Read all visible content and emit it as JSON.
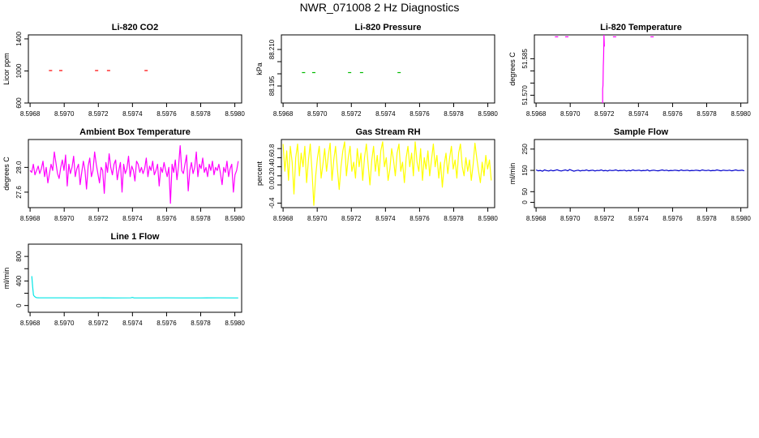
{
  "page": {
    "title": "NWR_071008  2 Hz Diagnostics"
  },
  "chart_data": [
    {
      "id": "co2",
      "type": "scatter",
      "title": "Li-820 CO2",
      "ylabel": "Licor ppm",
      "xlim": [
        8.59679,
        8.59804
      ],
      "ylim": [
        600,
        1450
      ],
      "xticks": [
        8.5968,
        8.597,
        8.5972,
        8.5974,
        8.5976,
        8.5978,
        8.598
      ],
      "xtick_labels": [
        "8.5968",
        "8.5970",
        "8.5972",
        "8.5974",
        "8.5976",
        "8.5978",
        "8.5980"
      ],
      "yticks": [
        600,
        1000,
        1400
      ],
      "ytick_labels": [
        "600",
        "1000",
        "1400"
      ],
      "color": "#ff0000",
      "series": [
        {
          "name": "CO2",
          "style": "dash",
          "x": [
            8.59692,
            8.59698,
            8.59719,
            8.59726,
            8.59748
          ],
          "y": [
            1005,
            1005,
            1005,
            1005,
            1005
          ]
        }
      ]
    },
    {
      "id": "pressure",
      "type": "scatter",
      "title": "Li-820 Pressure",
      "ylabel": "kPa",
      "xlim": [
        8.59679,
        8.59804
      ],
      "ylim": [
        88.188,
        88.216
      ],
      "xticks": [
        8.5968,
        8.597,
        8.5972,
        8.5974,
        8.5976,
        8.5978,
        8.598
      ],
      "xtick_labels": [
        "8.5968",
        "8.5970",
        "8.5972",
        "8.5974",
        "8.5976",
        "8.5978",
        "8.5980"
      ],
      "yticks": [
        88.195,
        88.2,
        88.205,
        88.21
      ],
      "ytick_labels": [
        "88.195",
        "",
        "",
        "88.210"
      ],
      "color": "#00bb00",
      "series": [
        {
          "name": "Pressure",
          "style": "dash",
          "x": [
            8.59692,
            8.59698,
            8.59719,
            8.59726,
            8.59748
          ],
          "y": [
            88.2005,
            88.2005,
            88.2005,
            88.2005,
            88.2005
          ]
        }
      ]
    },
    {
      "id": "temperature",
      "type": "line",
      "title": "Li-820 Temperature",
      "ylabel": "degrees C",
      "xlim": [
        8.59679,
        8.59804
      ],
      "ylim": [
        51.5668,
        51.5948
      ],
      "xticks": [
        8.5968,
        8.597,
        8.5972,
        8.5974,
        8.5976,
        8.5978,
        8.598
      ],
      "xtick_labels": [
        "8.5968",
        "8.5970",
        "8.5972",
        "8.5974",
        "8.5976",
        "8.5978",
        "8.5980"
      ],
      "yticks": [
        51.57,
        51.575,
        51.58,
        51.585
      ],
      "ytick_labels": [
        "51.570",
        "",
        "",
        "51.585"
      ],
      "color": "#ff00ff",
      "series": [
        {
          "name": "dashes",
          "style": "dash",
          "x": [
            8.59692,
            8.59698,
            8.59726,
            8.59748
          ],
          "y": [
            51.594,
            51.594,
            51.594,
            51.594
          ]
        },
        {
          "name": "spike",
          "style": "line",
          "x": [
            8.59719,
            8.59719,
            8.597192,
            8.597194,
            8.597196,
            8.597198,
            8.5972
          ],
          "y": [
            51.5668,
            51.5725,
            51.574,
            51.582,
            51.586,
            51.5948,
            51.59
          ]
        }
      ]
    },
    {
      "id": "ambient",
      "type": "line",
      "title": "Ambient Box Temperature",
      "ylabel": "degrees C",
      "xlim": [
        8.59679,
        8.59804
      ],
      "ylim": [
        27.35,
        28.45
      ],
      "xticks": [
        8.5968,
        8.597,
        8.5972,
        8.5974,
        8.5976,
        8.5978,
        8.598
      ],
      "xtick_labels": [
        "8.5968",
        "8.5970",
        "8.5972",
        "8.5974",
        "8.5976",
        "8.5978",
        "8.5980"
      ],
      "yticks": [
        27.6,
        28.0
      ],
      "ytick_labels": [
        "27.6",
        "28.0"
      ],
      "color": "#ff00ff",
      "series": [
        {
          "name": "Ambient",
          "style": "line",
          "x0": 8.5968,
          "x1": 8.59802,
          "y": [
            27.95,
            27.92,
            28.05,
            27.88,
            27.95,
            28.02,
            27.9,
            27.98,
            28.1,
            27.85,
            28.0,
            27.75,
            27.9,
            28.05,
            27.95,
            28.25,
            28.08,
            27.9,
            27.82,
            28.0,
            28.12,
            27.95,
            28.2,
            27.7,
            28.05,
            27.9,
            28.0,
            28.18,
            27.85,
            27.98,
            28.05,
            27.72,
            27.92,
            28.1,
            27.95,
            27.65,
            28.02,
            28.15,
            27.85,
            27.95,
            28.25,
            28.05,
            27.9,
            27.75,
            28.0,
            27.95,
            27.58,
            28.08,
            27.92,
            28.22,
            28.0,
            27.88,
            28.05,
            28.12,
            27.8,
            27.95,
            28.08,
            27.6,
            28.05,
            27.9,
            27.98,
            28.18,
            27.85,
            28.02,
            27.95,
            27.78,
            28.1,
            28.05,
            27.92,
            28.0,
            27.9,
            27.98,
            28.15,
            27.85,
            28.02,
            27.95,
            28.1,
            27.88,
            27.95,
            28.05,
            27.7,
            28.0,
            27.92,
            28.08,
            27.96,
            27.85,
            28.0,
            27.42,
            28.05,
            27.92,
            28.12,
            27.8,
            28.02,
            28.35,
            27.95,
            27.9,
            28.05,
            28.2,
            27.62,
            27.95,
            28.08,
            27.9,
            28.0,
            28.25,
            27.85,
            28.05,
            27.98,
            28.15,
            27.92,
            28.0,
            27.85,
            28.05,
            27.95,
            28.1,
            27.88,
            28.0,
            27.95,
            28.05,
            27.9,
            27.72,
            28.0,
            27.92,
            28.1,
            27.85,
            27.98,
            28.05,
            27.6,
            27.88,
            27.95,
            28.1
          ]
        }
      ]
    },
    {
      "id": "rh",
      "type": "line",
      "title": "Gas Stream RH",
      "ylabel": "percent",
      "xlim": [
        8.59679,
        8.59804
      ],
      "ylim": [
        -0.5,
        1.0
      ],
      "xticks": [
        8.5968,
        8.597,
        8.5972,
        8.5974,
        8.5976,
        8.5978,
        8.598
      ],
      "xtick_labels": [
        "8.5968",
        "8.5970",
        "8.5972",
        "8.5974",
        "8.5976",
        "8.5978",
        "8.5980"
      ],
      "yticks": [
        -0.4,
        0.0,
        0.2,
        0.4,
        0.6,
        0.8
      ],
      "ytick_labels": [
        "-0.4",
        "0.0",
        "0.2",
        "0.4",
        "0.6",
        "0.8"
      ],
      "color": "#ffff00",
      "series": [
        {
          "name": "RH",
          "style": "line",
          "x0": 8.5968,
          "x1": 8.59802,
          "y": [
            0.9,
            0.3,
            0.75,
            0.1,
            0.85,
            0.5,
            -0.2,
            0.6,
            0.9,
            0.2,
            0.7,
            0.4,
            0.85,
            0.05,
            0.55,
            0.9,
            0.3,
            -0.45,
            0.2,
            0.6,
            0.85,
            0.15,
            0.45,
            0.8,
            0.3,
            0.65,
            0.92,
            0.1,
            0.55,
            0.85,
            0.35,
            -0.1,
            0.4,
            0.75,
            0.95,
            0.2,
            0.6,
            0.85,
            0.3,
            0.5,
            0.15,
            0.8,
            0.4,
            0.7,
            0.1,
            0.6,
            0.9,
            0.45,
            0.0,
            0.55,
            0.85,
            0.3,
            0.65,
            0.2,
            0.75,
            0.95,
            0.4,
            0.6,
            0.1,
            0.35,
            0.8,
            0.55,
            0.2,
            0.7,
            0.9,
            0.3,
            0.5,
            0.05,
            0.6,
            0.85,
            0.4,
            0.7,
            0.2,
            0.95,
            0.5,
            0.3,
            0.8,
            0.1,
            0.6,
            0.35,
            0.75,
            0.2,
            0.55,
            0.9,
            0.4,
            0.65,
            0.15,
            0.5,
            -0.05,
            0.45,
            0.7,
            0.25,
            0.6,
            0.85,
            0.35,
            0.55,
            0.15,
            0.7,
            0.9,
            0.4,
            0.2,
            0.6,
            0.3,
            0.55,
            0.1,
            0.45,
            0.92,
            0.6,
            0.3,
            0.05,
            0.5,
            0.2,
            0.65,
            0.35,
            0.55,
            0.1
          ]
        }
      ]
    },
    {
      "id": "sample",
      "type": "line",
      "title": "Sample Flow",
      "ylabel": "ml/min",
      "xlim": [
        8.59679,
        8.59804
      ],
      "ylim": [
        -25,
        295
      ],
      "xticks": [
        8.5968,
        8.597,
        8.5972,
        8.5974,
        8.5976,
        8.5978,
        8.598
      ],
      "xtick_labels": [
        "8.5968",
        "8.5970",
        "8.5972",
        "8.5974",
        "8.5976",
        "8.5978",
        "8.5980"
      ],
      "yticks": [
        0,
        50,
        150,
        250
      ],
      "ytick_labels": [
        "0",
        "50",
        "150",
        "250"
      ],
      "color": "#0000cc",
      "series": [
        {
          "name": "Sample",
          "style": "line",
          "x0": 8.5968,
          "x1": 8.59802,
          "y": [
            152,
            148,
            150,
            146,
            152,
            149,
            147,
            151,
            148,
            150,
            153,
            149,
            147,
            150,
            152,
            148,
            154,
            150,
            146,
            149,
            151,
            147,
            150,
            149,
            152,
            148,
            150,
            151,
            147,
            150,
            149,
            152,
            148,
            150,
            147,
            151,
            149,
            150,
            152,
            148,
            150,
            149,
            151,
            147,
            150,
            148,
            152,
            149,
            150,
            151,
            148,
            150,
            149,
            152,
            147,
            150,
            151,
            149,
            148,
            150,
            152,
            149,
            151,
            148,
            150,
            149,
            151,
            150,
            148,
            152,
            149,
            150,
            151,
            148,
            150,
            149,
            151,
            150,
            148,
            152,
            150,
            149,
            151,
            148,
            150,
            149,
            152,
            150,
            148,
            151,
            150,
            149,
            151,
            148,
            150,
            152,
            149,
            150,
            151,
            148
          ]
        }
      ]
    },
    {
      "id": "line1",
      "type": "line",
      "title": "Line 1 Flow",
      "ylabel": "ml/min",
      "xlim": [
        8.59679,
        8.59804
      ],
      "ylim": [
        -110,
        1000
      ],
      "xticks": [
        8.5968,
        8.597,
        8.5972,
        8.5974,
        8.5976,
        8.5978,
        8.598
      ],
      "xtick_labels": [
        "8.5968",
        "8.5970",
        "8.5972",
        "8.5974",
        "8.5976",
        "8.5978",
        "8.5980"
      ],
      "yticks": [
        0,
        200,
        400,
        600,
        800
      ],
      "ytick_labels": [
        "0",
        "",
        "400",
        "",
        "800"
      ],
      "color": "#00e5e5",
      "series": [
        {
          "name": "Line1",
          "style": "line",
          "x": [
            8.59681,
            8.596815,
            8.59682,
            8.596825,
            8.59683,
            8.596835,
            8.59684,
            8.59685,
            8.5969,
            8.597,
            8.5971,
            8.5972,
            8.5973,
            8.59739,
            8.5974,
            8.59741,
            8.5975,
            8.5976,
            8.5977,
            8.5978,
            8.5979,
            8.598,
            8.59802
          ],
          "y": [
            480,
            300,
            170,
            150,
            140,
            130,
            128,
            126,
            125,
            125,
            124,
            125,
            124,
            125,
            132,
            124,
            124,
            125,
            124,
            124,
            125,
            124,
            124
          ]
        }
      ]
    }
  ]
}
